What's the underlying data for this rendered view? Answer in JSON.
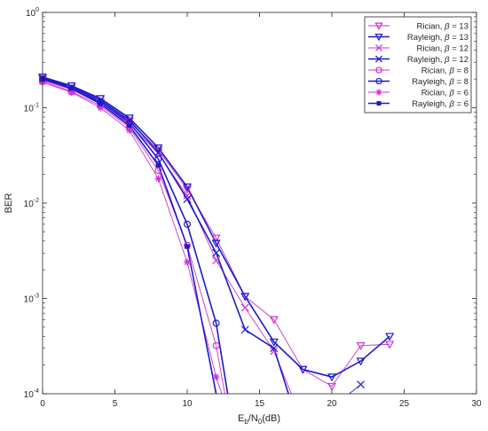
{
  "chart_data": {
    "type": "line",
    "ylog": true,
    "xlim": [
      0,
      30
    ],
    "ylim": [
      0.0001,
      1
    ],
    "xticks": [
      0,
      5,
      10,
      15,
      20,
      25,
      30
    ],
    "ytick_labels": [
      {
        "value": 1,
        "base": "10",
        "exp": "0"
      },
      {
        "value": 0.1,
        "base": "10",
        "exp": "-1"
      },
      {
        "value": 0.01,
        "base": "10",
        "exp": "-2"
      },
      {
        "value": 0.001,
        "base": "10",
        "exp": "-3"
      },
      {
        "value": 0.0001,
        "base": "10",
        "exp": "-4"
      }
    ],
    "xlabel": {
      "main": "E",
      "sub1": "b",
      "mid": "/N",
      "sub2": "0",
      "tail": "(dB)"
    },
    "ylabel": "BER",
    "legend_position": "top-right",
    "colors": {
      "rician": "#cc33cc",
      "rayleigh": "#1a1acc",
      "axis": "#262626"
    },
    "series": [
      {
        "label_prefix": "Rician, ",
        "beta": "13",
        "color": "#cc33cc",
        "marker": "triangle-down",
        "width": 1,
        "x": [
          0,
          2,
          4,
          6,
          8,
          10,
          12,
          14,
          16,
          18,
          20,
          22,
          24
        ],
        "y": [
          0.2,
          0.16,
          0.115,
          0.072,
          0.036,
          0.014,
          0.0043,
          0.00105,
          0.0006,
          0.00018,
          0.00012,
          0.00032,
          0.00033
        ]
      },
      {
        "label_prefix": "Rayleigh, ",
        "beta": "13",
        "color": "#1a1acc",
        "marker": "triangle-down",
        "width": 2,
        "x": [
          0,
          2,
          4,
          6,
          8,
          10,
          12,
          14,
          16,
          18,
          20,
          22,
          24
        ],
        "y": [
          0.21,
          0.17,
          0.125,
          0.078,
          0.038,
          0.0148,
          0.0038,
          0.00105,
          0.00035,
          0.00018,
          0.00015,
          0.00022,
          0.0004
        ]
      },
      {
        "label_prefix": "Rician, ",
        "beta": "12",
        "color": "#cc33cc",
        "marker": "x",
        "width": 1,
        "x": [
          0,
          2,
          4,
          6,
          8,
          10,
          12,
          14,
          16,
          17.2
        ],
        "y": [
          0.195,
          0.155,
          0.11,
          0.068,
          0.033,
          0.012,
          0.0025,
          0.0008,
          0.00028,
          0.0001
        ]
      },
      {
        "label_prefix": "Rayleigh, ",
        "beta": "12",
        "color": "#1a1acc",
        "marker": "x",
        "width": 2,
        "x": [
          0,
          2,
          4,
          6,
          8,
          10,
          12,
          14,
          16,
          17
        ],
        "y": [
          0.205,
          0.165,
          0.12,
          0.074,
          0.034,
          0.011,
          0.003,
          0.00047,
          0.0003,
          0.0001
        ]
      },
      {
        "label_prefix": "Rician, ",
        "beta": "8",
        "color": "#cc33cc",
        "marker": "circle",
        "width": 1,
        "x": [
          0,
          2,
          4,
          6,
          8,
          10,
          12,
          12.6
        ],
        "y": [
          0.19,
          0.148,
          0.105,
          0.062,
          0.022,
          0.0036,
          0.00032,
          0.0001
        ]
      },
      {
        "label_prefix": "Rayleigh, ",
        "beta": "8",
        "color": "#1a1acc",
        "marker": "circle",
        "width": 2,
        "x": [
          0,
          2,
          4,
          6,
          8,
          10,
          12,
          12.8
        ],
        "y": [
          0.2,
          0.16,
          0.115,
          0.07,
          0.029,
          0.006,
          0.00055,
          0.0001
        ]
      },
      {
        "label_prefix": "Rician, ",
        "beta": "6",
        "color": "#cc33cc",
        "marker": "asterisk",
        "width": 1,
        "x": [
          0,
          2,
          4,
          6,
          8,
          10,
          12,
          12.4
        ],
        "y": [
          0.185,
          0.145,
          0.1,
          0.058,
          0.018,
          0.0024,
          0.00015,
          0.0001
        ]
      },
      {
        "label_prefix": "Rayleigh, ",
        "beta": "6",
        "color": "#1a1acc",
        "marker": "square",
        "width": 2,
        "x": [
          0,
          2,
          4,
          6,
          8,
          10,
          12
        ],
        "y": [
          0.2,
          0.16,
          0.11,
          0.065,
          0.025,
          0.0035,
          0.0001
        ]
      },
      {
        "label_prefix": "",
        "beta": "",
        "color": "#1a1acc",
        "marker": "x",
        "width": 1,
        "no_legend": true,
        "x": [
          21.2,
          22
        ],
        "y": [
          0.0001,
          0.000125
        ]
      }
    ]
  }
}
